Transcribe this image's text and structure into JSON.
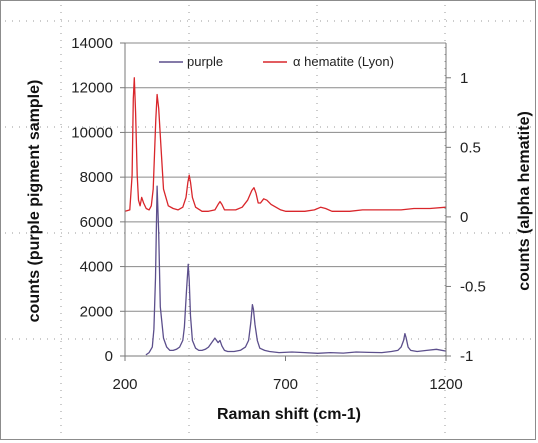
{
  "chart_data": {
    "type": "line",
    "xlabel": "Raman shift (cm-1)",
    "ylabel": "counts (purple pigment sample)",
    "y2label": "counts (alpha hematite)",
    "xlim": [
      200,
      1200
    ],
    "ylim": [
      0,
      14000
    ],
    "y2lim": [
      -1,
      1.25
    ],
    "x_ticks": [
      200,
      700,
      1200
    ],
    "y_ticks": [
      0,
      2000,
      4000,
      6000,
      8000,
      10000,
      12000,
      14000
    ],
    "y2_ticks": [
      -1,
      -0.5,
      0,
      0.5,
      1
    ],
    "grid": "horizontal",
    "legend_position": "top",
    "series": [
      {
        "name": "purple",
        "axis": "left",
        "color": "#5c4f8c",
        "x": [
          265,
          275,
          285,
          290,
          295,
          300,
          305,
          310,
          320,
          330,
          340,
          350,
          360,
          370,
          380,
          385,
          392,
          397,
          400,
          404,
          410,
          420,
          430,
          440,
          450,
          460,
          470,
          480,
          490,
          496,
          502,
          510,
          520,
          540,
          560,
          575,
          585,
          592,
          597,
          600,
          605,
          612,
          620,
          635,
          650,
          680,
          720,
          760,
          800,
          840,
          880,
          920,
          960,
          1000,
          1030,
          1050,
          1060,
          1068,
          1072,
          1076,
          1082,
          1090,
          1110,
          1140,
          1170,
          1200
        ],
        "y": [
          50,
          150,
          400,
          1200,
          3500,
          7600,
          5500,
          2200,
          800,
          400,
          250,
          250,
          300,
          400,
          700,
          1300,
          3000,
          4100,
          3400,
          1800,
          700,
          350,
          250,
          250,
          300,
          400,
          600,
          800,
          600,
          700,
          450,
          250,
          200,
          200,
          260,
          400,
          700,
          1500,
          2300,
          2100,
          1400,
          700,
          350,
          250,
          200,
          150,
          180,
          150,
          120,
          150,
          130,
          180,
          160,
          150,
          200,
          250,
          400,
          700,
          1000,
          800,
          400,
          250,
          200,
          250,
          300,
          220
        ]
      },
      {
        "name": "α hematite (Lyon)",
        "axis": "right",
        "color": "#d9262b",
        "x": [
          200,
          215,
          222,
          226,
          229,
          233,
          238,
          242,
          247,
          252,
          258,
          266,
          275,
          282,
          288,
          292,
          296,
          300,
          305,
          312,
          320,
          335,
          350,
          365,
          380,
          390,
          396,
          400,
          404,
          410,
          420,
          440,
          460,
          480,
          490,
          496,
          502,
          510,
          525,
          545,
          565,
          582,
          595,
          602,
          608,
          615,
          622,
          632,
          642,
          655,
          670,
          685,
          700,
          730,
          760,
          790,
          810,
          825,
          845,
          870,
          900,
          940,
          980,
          1020,
          1060,
          1100,
          1150,
          1200
        ],
        "y": [
          0.04,
          0.05,
          0.3,
          0.85,
          1.0,
          0.75,
          0.3,
          0.12,
          0.08,
          0.14,
          0.1,
          0.06,
          0.05,
          0.08,
          0.2,
          0.45,
          0.7,
          0.88,
          0.78,
          0.5,
          0.2,
          0.08,
          0.06,
          0.05,
          0.07,
          0.14,
          0.25,
          0.3,
          0.25,
          0.14,
          0.07,
          0.04,
          0.04,
          0.05,
          0.09,
          0.11,
          0.09,
          0.05,
          0.05,
          0.05,
          0.07,
          0.12,
          0.19,
          0.21,
          0.17,
          0.1,
          0.1,
          0.13,
          0.12,
          0.09,
          0.07,
          0.05,
          0.04,
          0.04,
          0.04,
          0.05,
          0.07,
          0.06,
          0.04,
          0.04,
          0.04,
          0.05,
          0.05,
          0.05,
          0.05,
          0.06,
          0.06,
          0.07
        ]
      }
    ]
  }
}
